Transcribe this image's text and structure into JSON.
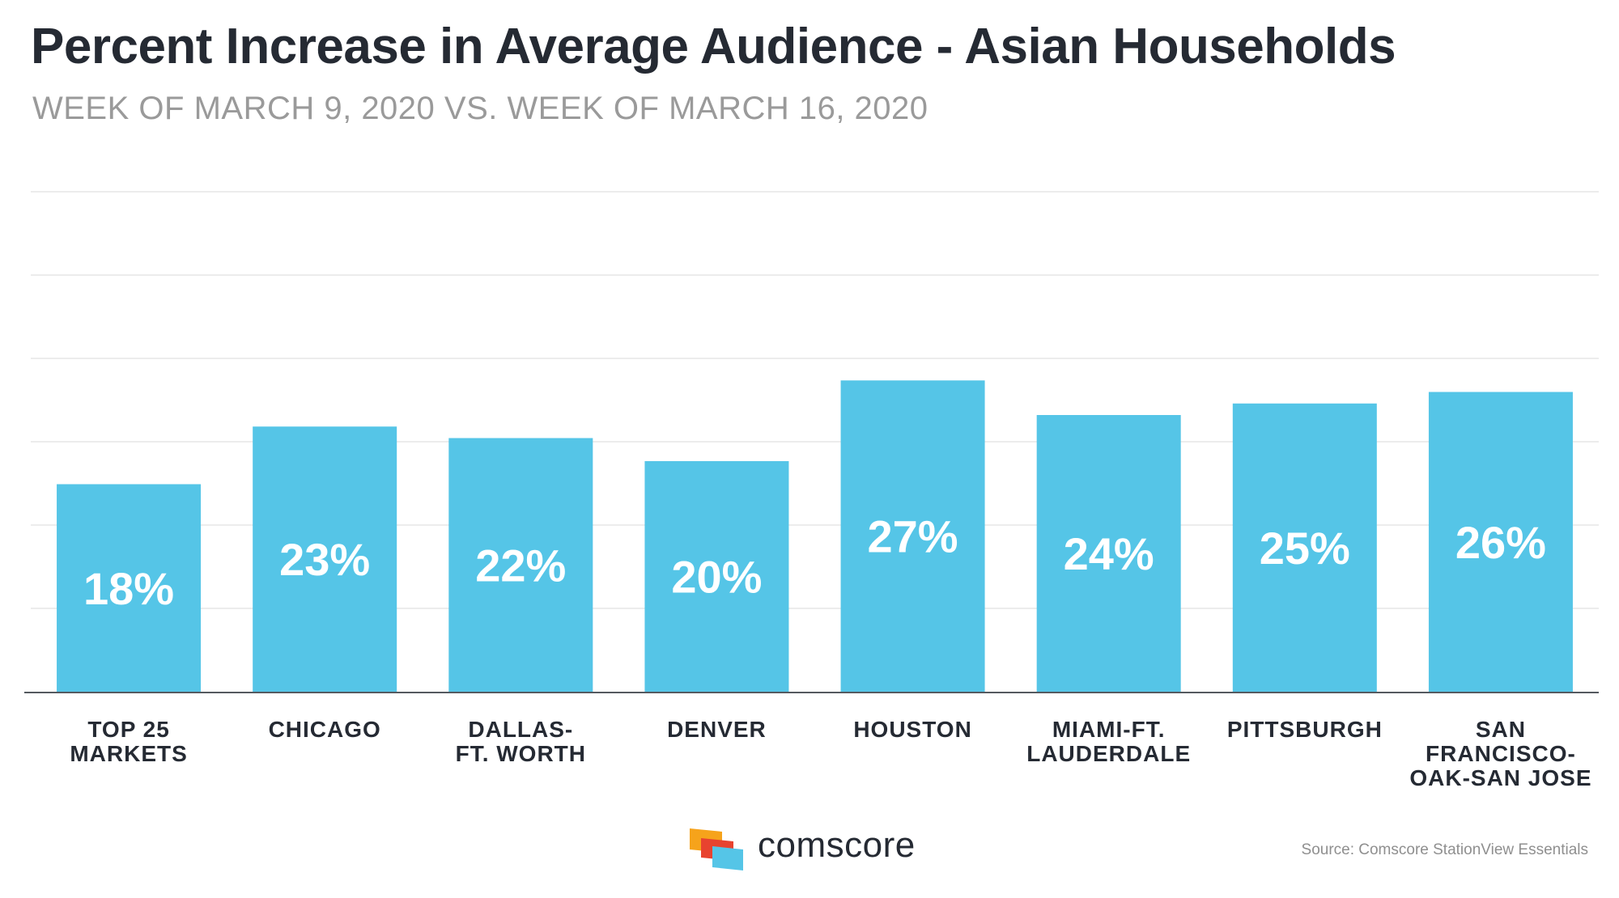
{
  "header": {
    "title": "Percent Increase in Average Audience - Asian Households",
    "subtitle": "WEEK OF MARCH 9, 2020 VS. WEEK OF MARCH 16, 2020"
  },
  "chart_data": {
    "type": "bar",
    "title": "Percent Increase in Average Audience - Asian Households",
    "subtitle": "WEEK OF MARCH 9, 2020 VS. WEEK OF MARCH 16, 2020",
    "xlabel": "",
    "ylabel": "",
    "categories": [
      "TOP 25\nMARKETS",
      "CHICAGO",
      "DALLAS-\nFT. WORTH",
      "DENVER",
      "HOUSTON",
      "MIAMI-FT.\nLAUDERDALE",
      "PITTSBURGH",
      "SAN\nFRANCISCO-\nOAK-SAN JOSE"
    ],
    "values": [
      18,
      23,
      22,
      20,
      27,
      24,
      25,
      26
    ],
    "data_labels": [
      "18%",
      "23%",
      "22%",
      "20%",
      "27%",
      "24%",
      "25%",
      "26%"
    ],
    "ylim": [
      0,
      30
    ],
    "grid": true,
    "legend": "none",
    "bar_color": "#55c5e7",
    "label_color": "#ffffff"
  },
  "footer": {
    "brand": "comscore",
    "source": "Source: Comscore StationView Essentials",
    "brand_colors": [
      "#f6a31b",
      "#e8432f",
      "#55c5e7"
    ]
  }
}
